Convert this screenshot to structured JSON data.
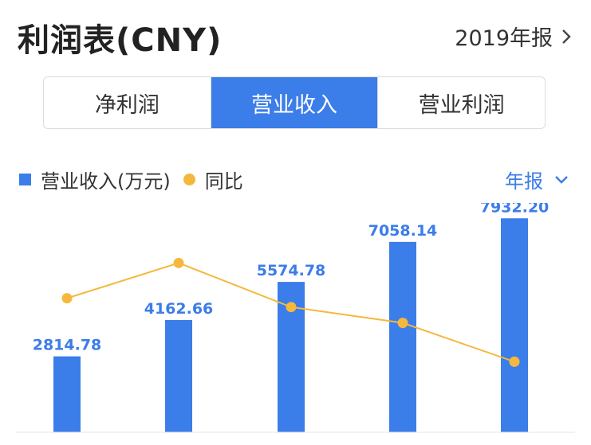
{
  "header": {
    "title": "利润表(CNY)",
    "report_label": "2019年报"
  },
  "tabs": [
    {
      "label": "净利润",
      "active": false
    },
    {
      "label": "营业收入",
      "active": true
    },
    {
      "label": "营业利润",
      "active": false
    }
  ],
  "legend": {
    "bar_label": "营业收入(万元)",
    "line_label": "同比"
  },
  "period_select": {
    "label": "年报"
  },
  "colors": {
    "accent": "#3b7de9",
    "line": "#f5b83d",
    "bar_label": "#3b7de9"
  },
  "chart_data": {
    "type": "bar",
    "categories": [
      "",
      "",
      "",
      "",
      ""
    ],
    "series": [
      {
        "name": "营业收入(万元)",
        "type": "bar",
        "values": [
          2814.78,
          4162.66,
          5574.78,
          7058.14,
          7932.2
        ]
      },
      {
        "name": "同比",
        "type": "line",
        "values": [
          38,
          48,
          35.5,
          31,
          20
        ]
      }
    ],
    "data_labels": [
      "2814.78",
      "4162.66",
      "5574.78",
      "7058.14",
      "7932.20"
    ],
    "ylim": [
      0,
      8500
    ],
    "line_ylim": [
      0,
      65
    ],
    "grid": false,
    "legend_position": "top-left"
  }
}
